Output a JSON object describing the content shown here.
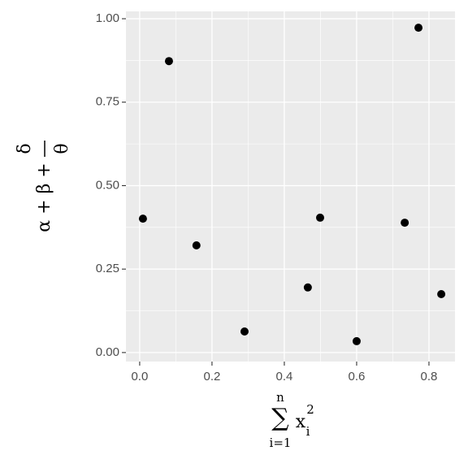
{
  "chart_data": {
    "type": "scatter",
    "x": [
      0.009,
      0.081,
      0.157,
      0.29,
      0.465,
      0.499,
      0.6,
      0.733,
      0.771,
      0.834
    ],
    "values": [
      0.401,
      0.873,
      0.321,
      0.063,
      0.195,
      0.404,
      0.034,
      0.389,
      0.973,
      0.175
    ],
    "color": "#000000",
    "xlim": [
      -0.038,
      0.872
    ],
    "ylim": [
      -0.027,
      1.022
    ],
    "xticks": [
      {
        "value": 0,
        "label": "0.0"
      },
      0.2,
      0.4,
      0.6,
      0.8
    ],
    "yticks": [
      {
        "value": 0,
        "label": "0.00"
      },
      0.25,
      {
        "value": 0.5,
        "label": "0.50"
      },
      0.75,
      {
        "value": 1,
        "label": "1.00"
      }
    ],
    "grid": true,
    "minor_grid": true,
    "xlabel": {
      "operator": "∑",
      "upper": "n",
      "lower": "i=1",
      "base": "x",
      "subscript": "i",
      "superscript": "2"
    },
    "ylabel": {
      "prefix": "α + β +",
      "numerator": "δ",
      "denominator": "θ"
    }
  }
}
